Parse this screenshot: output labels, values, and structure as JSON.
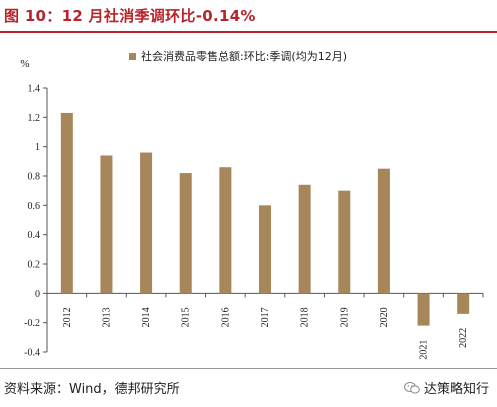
{
  "title": "图 10：12 月社消季调环比-0.14%",
  "source": "资料来源：Wind，德邦研究所",
  "brand": "达策略知行",
  "colors": {
    "title": "#b8242b",
    "bar": "#a8865b",
    "axis": "#555555"
  },
  "chart_data": {
    "type": "bar",
    "ylabel": "%",
    "ylim": [
      -0.4,
      1.4
    ],
    "yticks": [
      -0.4,
      -0.2,
      0,
      0.2,
      0.4,
      0.6,
      0.8,
      1,
      1.2,
      1.4
    ],
    "ytick_labels": [
      "-0.4",
      "-0.2",
      "0",
      "0.2",
      "0.4",
      "0.6",
      "0.8",
      "1",
      "1.2",
      "1.4"
    ],
    "grid": false,
    "legend_position": "top",
    "categories": [
      "2012",
      "2013",
      "2014",
      "2015",
      "2016",
      "2017",
      "2018",
      "2019",
      "2020",
      "2021",
      "2022"
    ],
    "series": [
      {
        "name": "社会消费品零售总额:环比:季调(均为12月)",
        "values": [
          1.23,
          0.94,
          0.96,
          0.82,
          0.86,
          0.6,
          0.74,
          0.7,
          0.85,
          -0.22,
          -0.14
        ]
      }
    ]
  }
}
